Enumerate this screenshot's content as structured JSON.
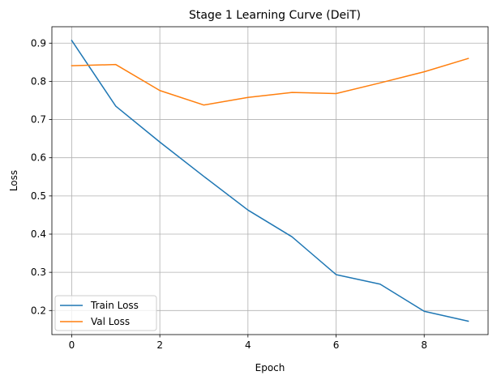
{
  "chart_data": {
    "type": "line",
    "title": "Stage 1 Learning Curve (DeiT)",
    "xlabel": "Epoch",
    "ylabel": "Loss",
    "x": [
      0,
      1,
      2,
      3,
      4,
      5,
      6,
      7,
      8,
      9
    ],
    "xlim": [
      -0.45,
      9.45
    ],
    "ylim": [
      0.137,
      0.943
    ],
    "xticks": [
      0,
      2,
      4,
      6,
      8
    ],
    "yticks": [
      0.2,
      0.3,
      0.4,
      0.5,
      0.6,
      0.7,
      0.8,
      0.9
    ],
    "grid": true,
    "legend_position": "lower-left",
    "series": [
      {
        "name": "Train Loss",
        "color": "#1f77b4",
        "values": [
          0.907,
          0.735,
          0.641,
          0.551,
          0.463,
          0.393,
          0.294,
          0.269,
          0.198,
          0.172
        ]
      },
      {
        "name": "Val Loss",
        "color": "#ff7f0e",
        "values": [
          0.841,
          0.844,
          0.776,
          0.738,
          0.758,
          0.771,
          0.768,
          0.796,
          0.825,
          0.86
        ]
      }
    ]
  }
}
